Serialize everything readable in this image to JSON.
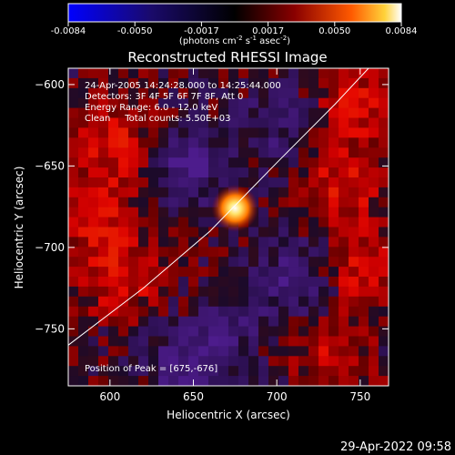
{
  "chart_data": {
    "type": "heatmap",
    "title": "Reconstructed RHESSI Image",
    "xlabel": "Heliocentric X (arcsec)",
    "ylabel": "Heliocentric Y (arcsec)",
    "xlim": [
      575,
      767
    ],
    "ylim": [
      -785,
      -590
    ],
    "xticks": [
      600,
      650,
      700,
      750
    ],
    "yticks": [
      -600,
      -650,
      -700,
      -750
    ],
    "colorbar": {
      "ticks": [
        "-0.0084",
        "-0.0050",
        "-0.0017",
        "0.0017",
        "0.0050",
        "0.0084"
      ],
      "range": [
        -0.0084,
        0.0084
      ],
      "unit_main": "(photons cm",
      "unit_exp1": "-2",
      "unit_mid": " s",
      "unit_exp2": "-1",
      "unit_mid2": " asec",
      "unit_exp3": "-2",
      "unit_end": ")"
    },
    "annotations": [
      "24-Apr-2005 14:24:28.000 to 14:25:44.000",
      "Detectors: 3F 4F 5F 6F 7F 8F, Att 0",
      "Energy Range: 6.0 - 12.0 keV",
      "Clean     Total counts: 5.50E+03"
    ],
    "peak_label": "Position of Peak = [675,-676]",
    "peak": {
      "x": 675,
      "y": -676,
      "value": 0.0084
    },
    "limb_curve": [
      [
        575,
        -760
      ],
      [
        620,
        -725
      ],
      [
        660,
        -690
      ],
      [
        700,
        -648
      ],
      [
        735,
        -612
      ],
      [
        755,
        -590
      ]
    ],
    "footer_date": "29-Apr-2022 09:58"
  }
}
